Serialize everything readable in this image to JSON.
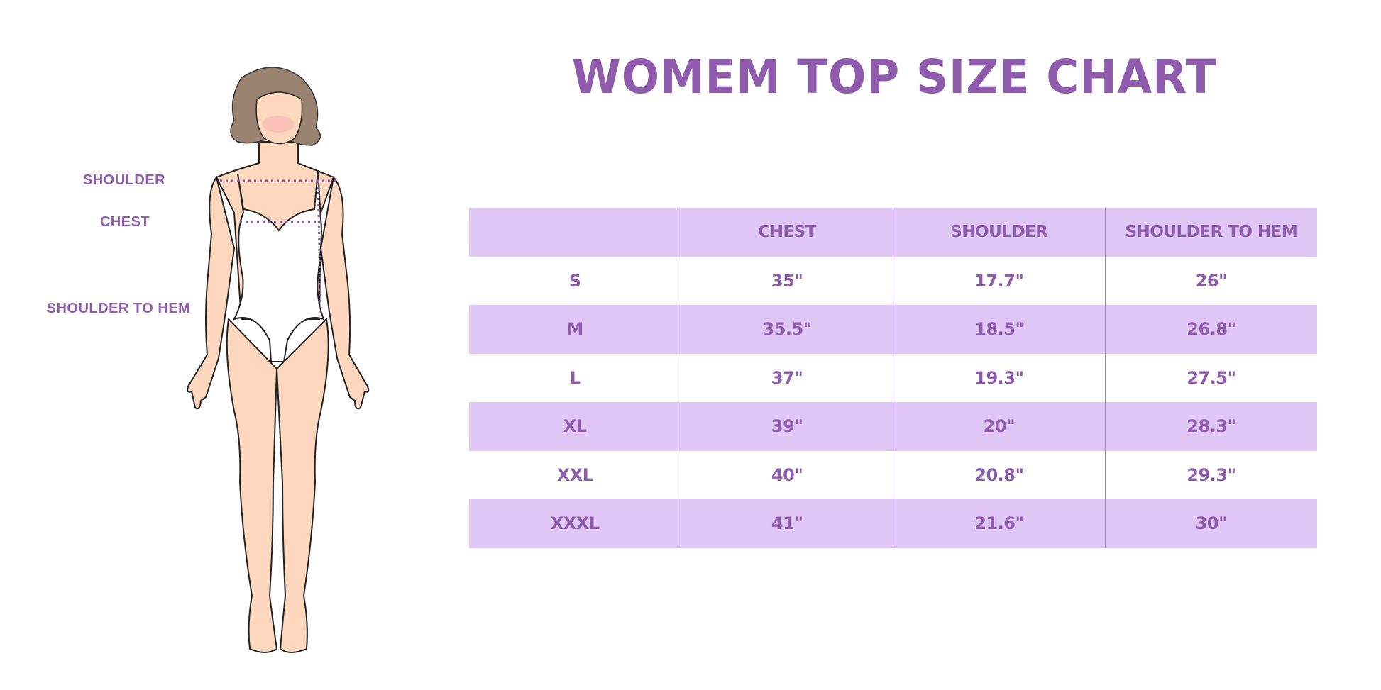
{
  "title": "WOMEM TOP SIZE CHART",
  "figure_labels": {
    "shoulder": "SHOULDER",
    "chest": "CHEST",
    "shoulder_to_hem": "SHOULDER TO HEM"
  },
  "colors": {
    "accent": "#8e5bad",
    "band": "#e0c6f4",
    "skin": "#fdd8bf",
    "hair": "#9a8370"
  },
  "table": {
    "headers": [
      "",
      "CHEST",
      "SHOULDER",
      "SHOULDER TO HEM"
    ],
    "rows": [
      [
        "S",
        "35\"",
        "17.7\"",
        "26\""
      ],
      [
        "M",
        "35.5\"",
        "18.5\"",
        "26.8\""
      ],
      [
        "L",
        "37\"",
        "19.3\"",
        "27.5\""
      ],
      [
        "XL",
        "39\"",
        "20\"",
        "28.3\""
      ],
      [
        "XXL",
        "40\"",
        "20.8\"",
        "29.3\""
      ],
      [
        "XXXL",
        "41\"",
        "21.6\"",
        "30\""
      ]
    ]
  }
}
